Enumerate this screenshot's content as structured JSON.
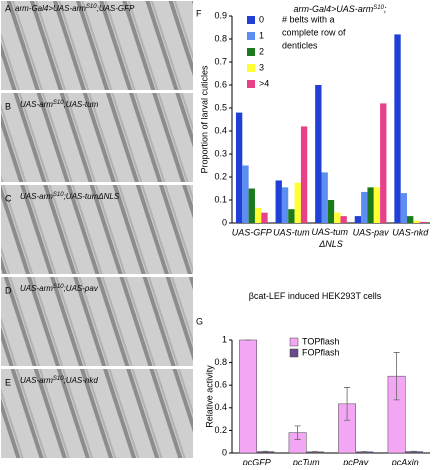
{
  "image_panels": [
    {
      "letter": "A",
      "label": [
        "arm-Gal4>UAS-arm",
        "S10",
        ";UAS-GFP"
      ]
    },
    {
      "letter": "B",
      "label": [
        "UAS-arm",
        "S10",
        ";UAS-tum"
      ]
    },
    {
      "letter": "C",
      "label": [
        "UAS-arm",
        "S10",
        ";UAS-tumΔNLS"
      ]
    },
    {
      "letter": "D",
      "label": [
        "UAS-arm",
        "S10",
        ";UAS-pav"
      ]
    },
    {
      "letter": "E",
      "label": [
        "UAS-arm",
        "S10",
        ";UAS-nkd"
      ]
    }
  ],
  "chart_data": [
    {
      "type": "bar",
      "letter": "F",
      "title": [
        "arm-Gal4>UAS-arm",
        "S10",
        ";"
      ],
      "y_label": "Proportion of larval cuticles",
      "legend_title": [
        "# belts with a",
        "complete row of",
        "denticles"
      ],
      "categories": [
        "UAS-GFP",
        "UAS-tum",
        "UAS-tum ΔNLS",
        "UAS-pav",
        "UAS-nkd"
      ],
      "series": [
        {
          "name": "0",
          "color": "#1f3fd6",
          "values": [
            0.48,
            0.185,
            0.6,
            0.03,
            0.82
          ]
        },
        {
          "name": "1",
          "color": "#5b8ef0",
          "values": [
            0.25,
            0.155,
            0.22,
            0.135,
            0.13
          ]
        },
        {
          "name": "2",
          "color": "#1c7a1c",
          "values": [
            0.15,
            0.06,
            0.1,
            0.155,
            0.03
          ]
        },
        {
          "name": "3",
          "color": "#ffff33",
          "values": [
            0.065,
            0.175,
            0.045,
            0.155,
            0.01
          ]
        },
        {
          "name": ">4",
          "color": "#e8418a",
          "values": [
            0.045,
            0.42,
            0.03,
            0.52,
            0.005
          ]
        }
      ],
      "ylim": [
        0,
        0.9
      ],
      "yticks": [
        0,
        0.1,
        0.2,
        0.3,
        0.4,
        0.5,
        0.6,
        0.7,
        0.8,
        0.9
      ]
    },
    {
      "type": "bar",
      "letter": "G",
      "title": [
        "βcat-LEF induced HEK293T cells"
      ],
      "y_label": "Relative activity",
      "categories": [
        "pcGFP",
        "pcTum",
        "pcPav",
        "pcAxin"
      ],
      "series": [
        {
          "name": "TOPflash",
          "color": "#f3a6f3",
          "values": [
            1,
            0.18,
            0.435,
            0.68
          ],
          "errors": [
            0,
            0.06,
            0.145,
            0.21
          ]
        },
        {
          "name": "FOPflash",
          "color": "#6a4a8a",
          "values": [
            0.012,
            0.01,
            0.01,
            0.012
          ],
          "errors": [
            0.003,
            0.003,
            0.003,
            0.003
          ]
        }
      ],
      "ylim": [
        0,
        1
      ],
      "yticks": [
        0,
        0.2,
        0.4,
        0.6,
        0.8,
        1
      ]
    }
  ]
}
